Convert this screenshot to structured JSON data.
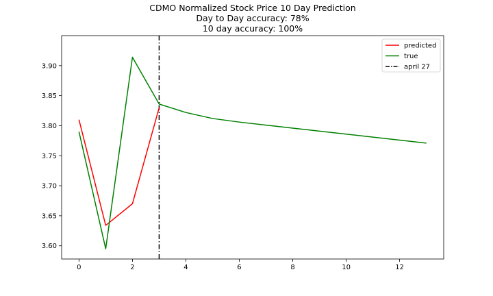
{
  "chart_data": {
    "type": "line",
    "title": "CDMO Normalized Stock Price 10 Day Prediction",
    "subtitle_lines": [
      "Day to Day accuracy: 78%",
      "10 day accuracy: 100%"
    ],
    "xlabel": "",
    "ylabel": "",
    "xlim": [
      -0.65,
      13.65
    ],
    "ylim": [
      3.578,
      3.95
    ],
    "x_ticks": [
      0,
      2,
      4,
      6,
      8,
      10,
      12
    ],
    "y_ticks": [
      3.6,
      3.65,
      3.7,
      3.75,
      3.8,
      3.85,
      3.9
    ],
    "y_tick_labels": [
      "3.60",
      "3.65",
      "3.70",
      "3.75",
      "3.80",
      "3.85",
      "3.90"
    ],
    "grid": false,
    "legend_position": "top-right",
    "series": [
      {
        "name": "predicted",
        "color": "#ff0000",
        "x": [
          0,
          1,
          2,
          3
        ],
        "values": [
          3.81,
          3.634,
          3.67,
          3.83
        ]
      },
      {
        "name": "true",
        "color": "#008000",
        "x": [
          0,
          1,
          2,
          3,
          4,
          5,
          6,
          7,
          8,
          9,
          10,
          11,
          12,
          13
        ],
        "values": [
          3.79,
          3.595,
          3.914,
          3.836,
          3.822,
          3.812,
          3.806,
          3.801,
          3.796,
          3.791,
          3.786,
          3.781,
          3.776,
          3.771
        ]
      }
    ],
    "vline": {
      "name": "april 27",
      "x": 3,
      "color": "#000000",
      "style": "dash-dot"
    }
  }
}
